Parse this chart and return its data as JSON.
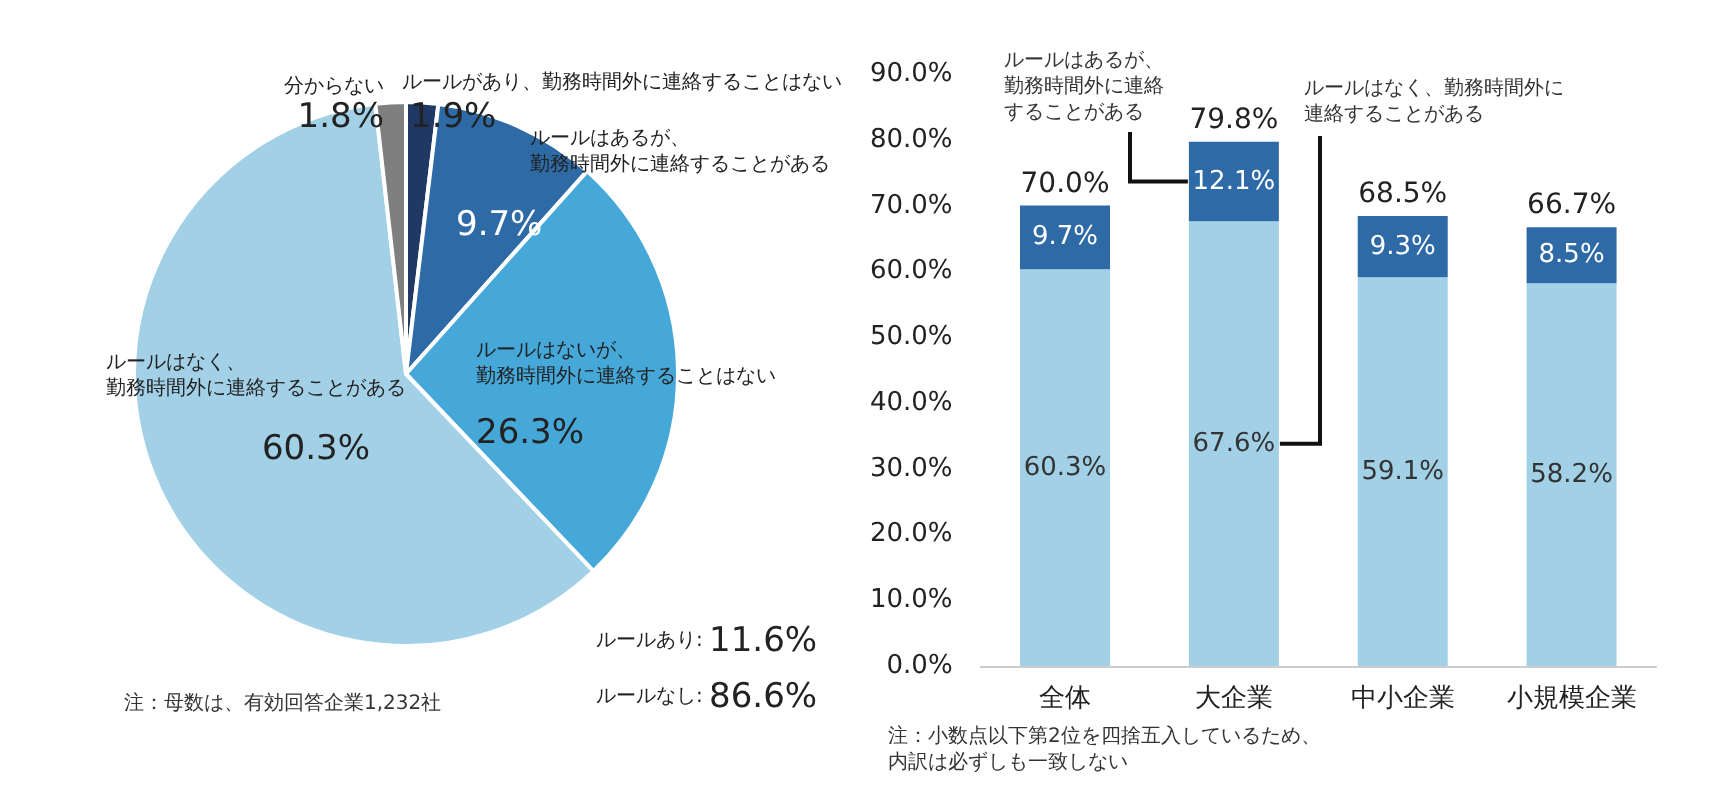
{
  "chart_data": [
    {
      "type": "pie",
      "categories": [
        "ルールがあり、勤務時間外に連絡することはない",
        "ルールはあるが、勤務時間外に連絡することがある",
        "ルールはないが、勤務時間外に連絡することはない",
        "ルールはなく、勤務時間外に連絡することがある",
        "分からない"
      ],
      "values": [
        1.9,
        9.7,
        26.3,
        60.3,
        1.8
      ],
      "value_labels": [
        "1.9%",
        "9.7%",
        "26.3%",
        "60.3%",
        "1.8%"
      ],
      "colors": [
        "#1f3864",
        "#2e6aa6",
        "#45a8d8",
        "#a2d0e6",
        "#7f7f7f"
      ],
      "legend": false,
      "annotations": [
        "ルールあり: 11.6%",
        "ルールなし: 86.6%",
        "注：母数は、有効回答企業1,232社"
      ]
    },
    {
      "type": "bar",
      "stacked": true,
      "categories": [
        "全体",
        "大企業",
        "中小企業",
        "小規模企業"
      ],
      "series": [
        {
          "name": "ルールはなく、勤務時間外に連絡することがある",
          "color": "#a2d0e6",
          "values": [
            60.3,
            67.6,
            59.1,
            58.2
          ],
          "value_labels": [
            "60.3%",
            "67.6%",
            "59.1%",
            "58.2%"
          ]
        },
        {
          "name": "ルールはあるが、勤務時間外に連絡することがある",
          "color": "#2e6aa6",
          "values": [
            9.7,
            12.1,
            9.3,
            8.5
          ],
          "value_labels": [
            "9.7%",
            "12.1%",
            "9.3%",
            "8.5%"
          ]
        }
      ],
      "totals": [
        "70.0%",
        "79.8%",
        "68.5%",
        "66.7%"
      ],
      "ylim": [
        0,
        90
      ],
      "yticks": [
        {
          "value": 0,
          "label": "0.0%"
        },
        {
          "value": 10,
          "label": "10.0%"
        },
        {
          "value": 20,
          "label": "20.0%"
        },
        {
          "value": 30,
          "label": "30.0%"
        },
        {
          "value": 40,
          "label": "40.0%"
        },
        {
          "value": 50,
          "label": "50.0%"
        },
        {
          "value": 60,
          "label": "60.0%"
        },
        {
          "value": 70,
          "label": "70.0%"
        },
        {
          "value": 80,
          "label": "80.0%"
        },
        {
          "value": 90,
          "label": "90.0%"
        }
      ],
      "grid": false,
      "legend": false,
      "annotations": [
        "注：小数点以下第2位を四捨五入しているため、内訳は必ずしも一致しない"
      ]
    }
  ]
}
